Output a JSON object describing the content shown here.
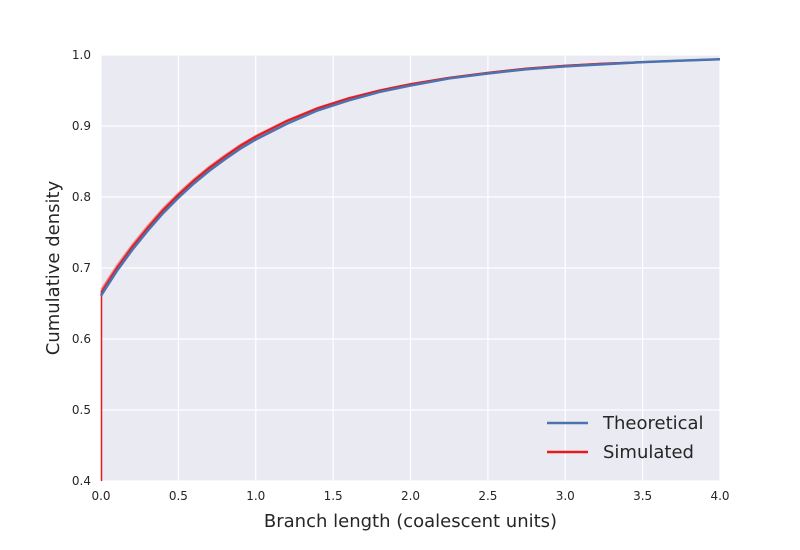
{
  "chart_data": {
    "type": "line",
    "title": "",
    "xlabel": "Branch length (coalescent units)",
    "ylabel": "Cumulative density",
    "xlim": [
      0.0,
      4.0
    ],
    "ylim": [
      0.4,
      1.0
    ],
    "x_ticks": [
      "0.0",
      "0.5",
      "1.0",
      "1.5",
      "2.0",
      "2.5",
      "3.0",
      "3.5",
      "4.0"
    ],
    "y_ticks": [
      "0.4",
      "0.5",
      "0.6",
      "0.7",
      "0.8",
      "0.9",
      "1.0"
    ],
    "grid": true,
    "legend": "lower-right",
    "background_color": "#EAEAF2",
    "series": [
      {
        "name": "Theoretical",
        "color": "#4C72B0",
        "x": [
          0.0,
          0.1,
          0.2,
          0.3,
          0.4,
          0.5,
          0.6,
          0.7,
          0.8,
          0.9,
          1.0,
          1.2,
          1.4,
          1.6,
          1.8,
          2.0,
          2.25,
          2.5,
          2.75,
          3.0,
          3.25,
          3.5,
          3.75,
          4.0
        ],
        "y": [
          0.661,
          0.695,
          0.725,
          0.752,
          0.777,
          0.799,
          0.819,
          0.837,
          0.853,
          0.868,
          0.881,
          0.903,
          0.922,
          0.936,
          0.948,
          0.957,
          0.967,
          0.974,
          0.98,
          0.984,
          0.987,
          0.99,
          0.992,
          0.994
        ]
      },
      {
        "name": "Simulated",
        "color": "#E41A1C",
        "x": [
          0.0,
          0.1,
          0.2,
          0.3,
          0.4,
          0.5,
          0.6,
          0.7,
          0.8,
          0.9,
          1.0,
          1.2,
          1.4,
          1.6,
          1.8,
          2.0,
          2.25,
          2.5,
          2.75,
          3.0,
          3.25,
          3.5,
          3.75,
          4.0
        ],
        "y": [
          0.665,
          0.699,
          0.729,
          0.756,
          0.781,
          0.803,
          0.823,
          0.841,
          0.857,
          0.872,
          0.885,
          0.907,
          0.925,
          0.939,
          0.95,
          0.959,
          0.968,
          0.975,
          0.981,
          0.985,
          0.988,
          0.99,
          0.992,
          0.994
        ]
      }
    ]
  }
}
